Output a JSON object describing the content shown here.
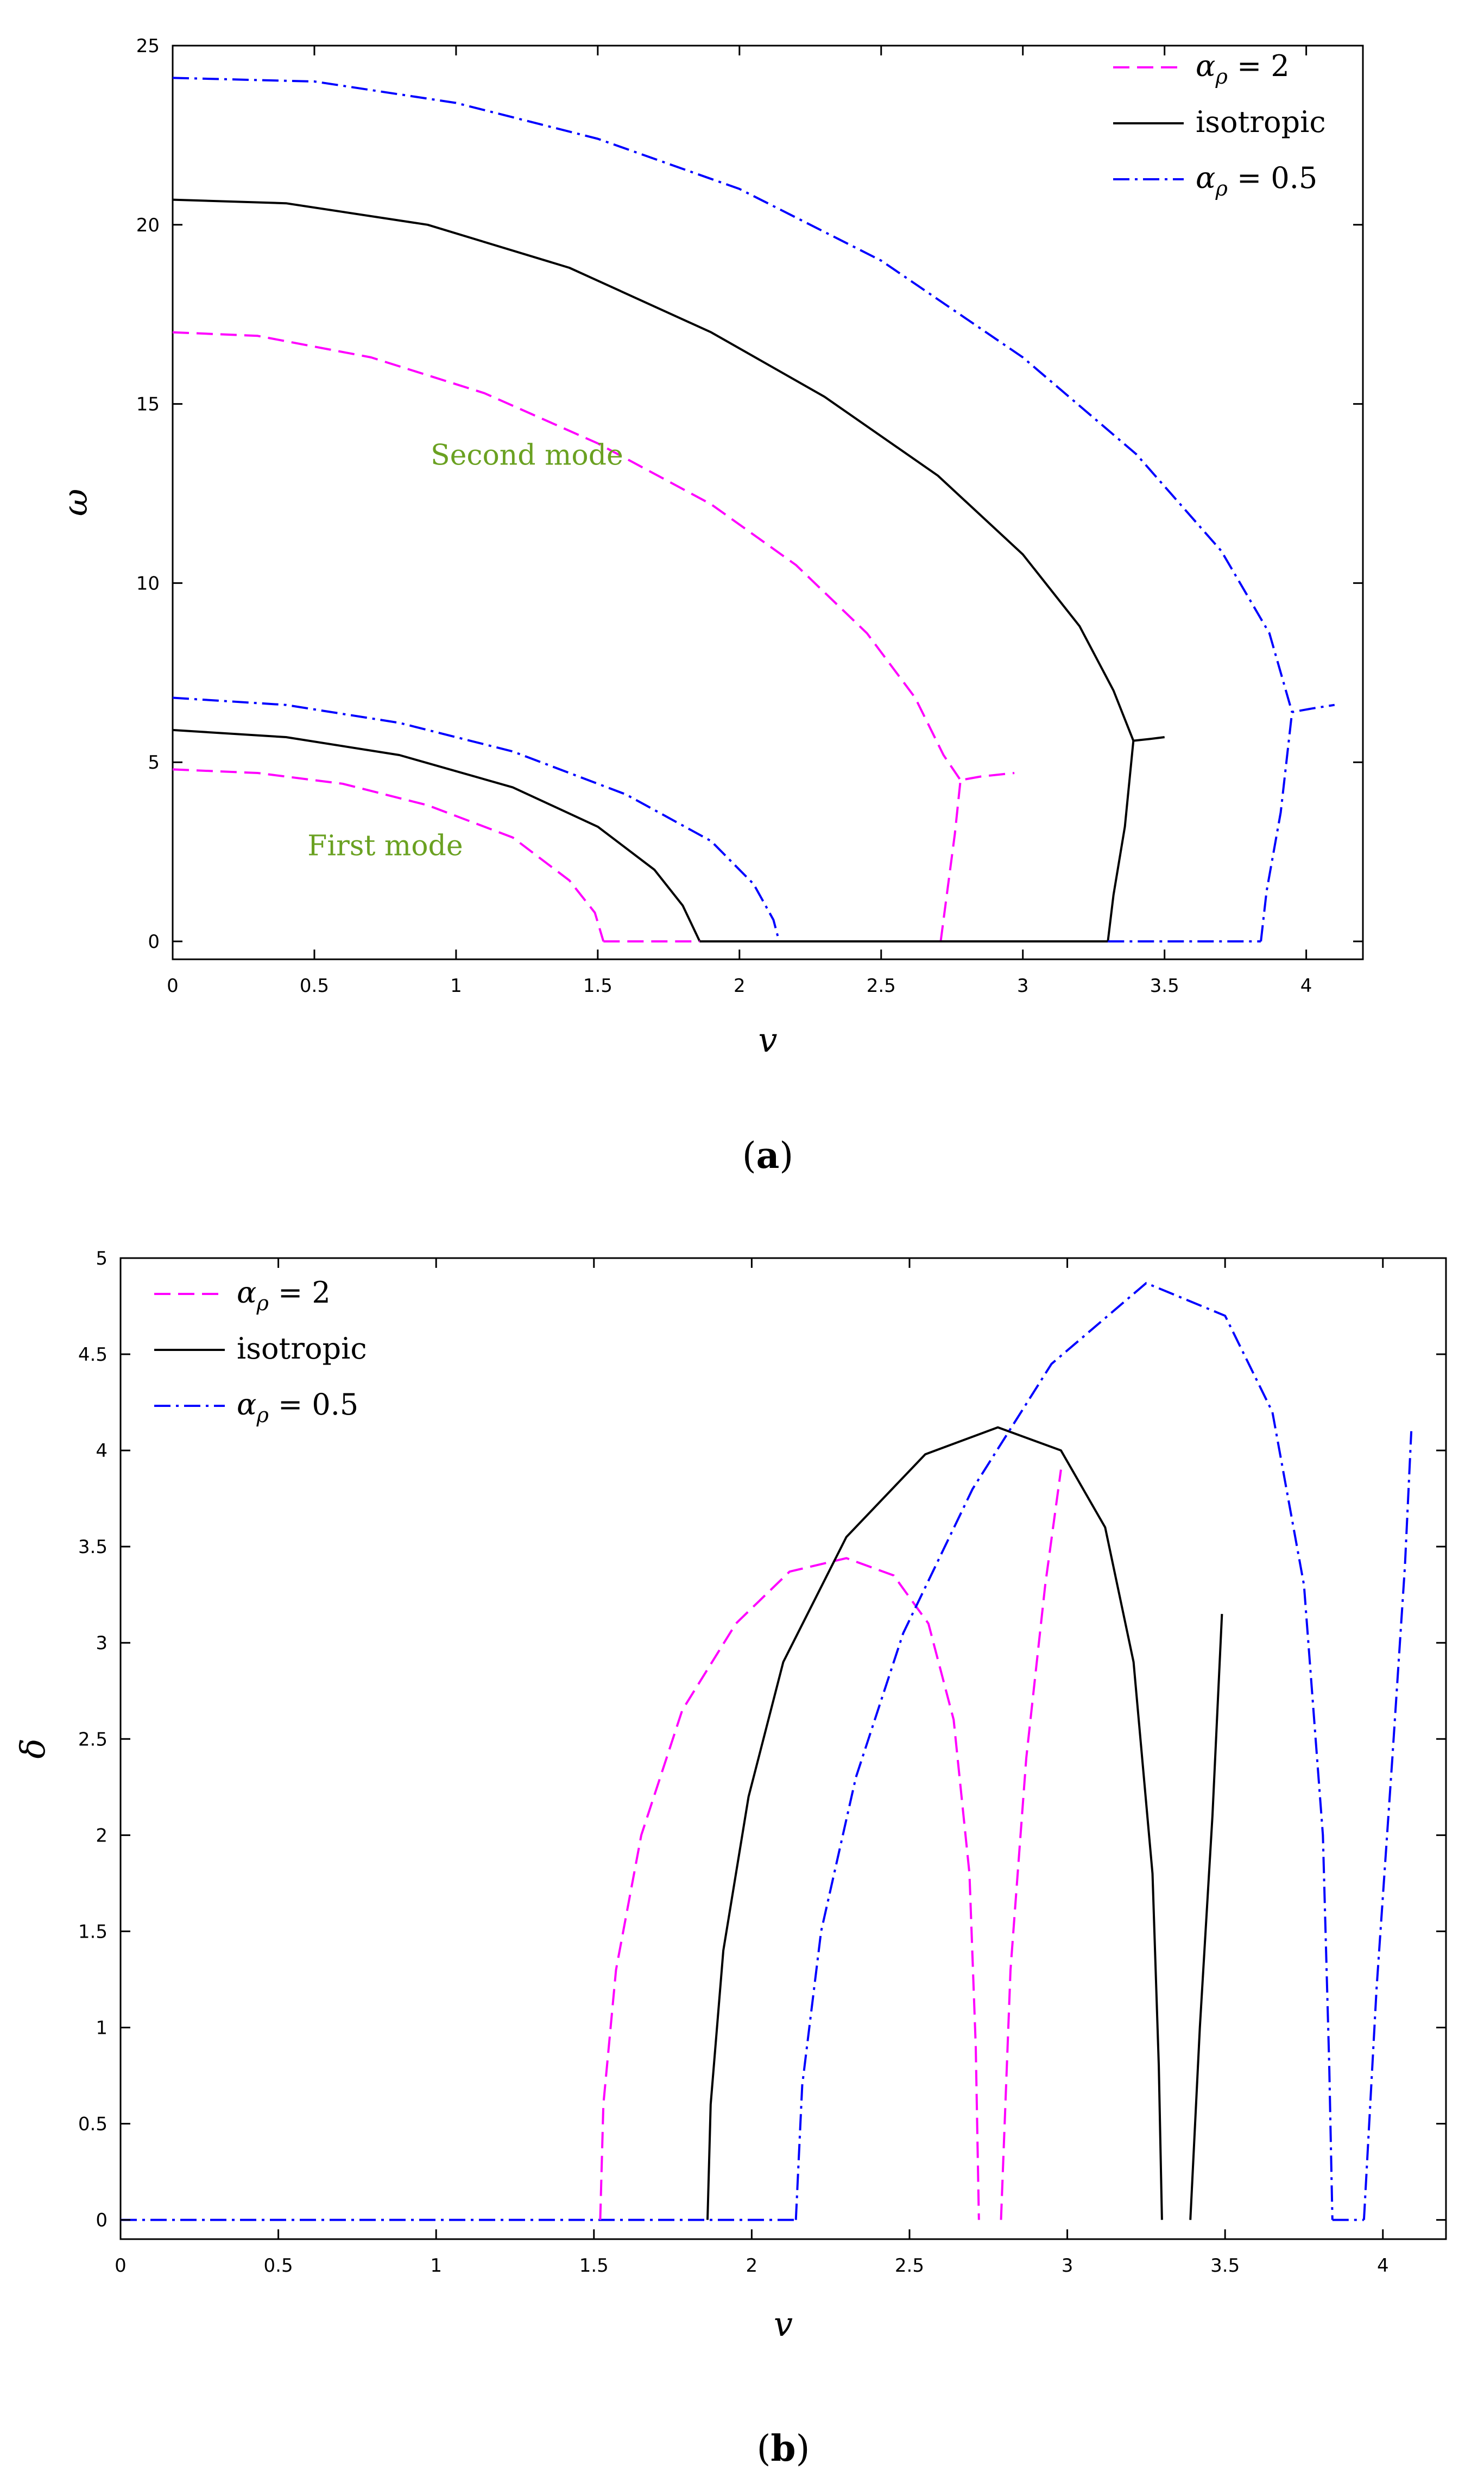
{
  "chart_data": [
    {
      "type": "line",
      "caption": {
        "open": "(",
        "letter": "a",
        "close": ")"
      },
      "xlabel": "v",
      "ylabel": "ω",
      "xlim": [
        0,
        4.2
      ],
      "ylim": [
        -0.5,
        25
      ],
      "xticks": [
        "0",
        "0.5",
        "1",
        "1.5",
        "2",
        "2.5",
        "3",
        "3.5",
        "4"
      ],
      "yticks": [
        "0",
        "5",
        "10",
        "15",
        "20",
        "25"
      ],
      "legend_position": "top-right",
      "legend": [
        {
          "label": "α",
          "sub": "ρ",
          "rest": " = 2",
          "color": "#ff00ff",
          "dash": "dashed"
        },
        {
          "label": "isotropic",
          "sub": "",
          "rest": "",
          "color": "#000000",
          "dash": "solid"
        },
        {
          "label": "α",
          "sub": "ρ",
          "rest": " = 0.5",
          "color": "#0000ff",
          "dash": "dashdot"
        }
      ],
      "annotations": [
        {
          "text": "Second mode",
          "x": 1.25,
          "y": 13.3
        },
        {
          "text": "First mode",
          "x": 0.75,
          "y": 2.4
        }
      ],
      "series": [
        {
          "series_index": 0,
          "color": "#ff00ff",
          "dash": "dashed",
          "points": [
            [
              0,
              4.8
            ],
            [
              0.3,
              4.7
            ],
            [
              0.6,
              4.4
            ],
            [
              0.9,
              3.8
            ],
            [
              1.2,
              2.9
            ],
            [
              1.4,
              1.7
            ],
            [
              1.49,
              0.8
            ],
            [
              1.52,
              0
            ]
          ]
        },
        {
          "series_index": 1,
          "color": "#000000",
          "dash": "solid",
          "points": [
            [
              0,
              5.9
            ],
            [
              0.4,
              5.7
            ],
            [
              0.8,
              5.2
            ],
            [
              1.2,
              4.3
            ],
            [
              1.5,
              3.2
            ],
            [
              1.7,
              2.0
            ],
            [
              1.8,
              1.0
            ],
            [
              1.86,
              0
            ]
          ]
        },
        {
          "series_index": 2,
          "color": "#0000ff",
          "dash": "dashdot",
          "points": [
            [
              0,
              6.8
            ],
            [
              0.4,
              6.6
            ],
            [
              0.8,
              6.1
            ],
            [
              1.2,
              5.3
            ],
            [
              1.6,
              4.1
            ],
            [
              1.9,
              2.8
            ],
            [
              2.05,
              1.6
            ],
            [
              2.12,
              0.6
            ],
            [
              2.14,
              0
            ]
          ]
        },
        {
          "series_index": 0,
          "color": "#ff00ff",
          "dash": "dashed",
          "points": [
            [
              0,
              17.0
            ],
            [
              0.3,
              16.9
            ],
            [
              0.7,
              16.3
            ],
            [
              1.1,
              15.3
            ],
            [
              1.5,
              13.9
            ],
            [
              1.9,
              12.2
            ],
            [
              2.2,
              10.5
            ],
            [
              2.45,
              8.6
            ],
            [
              2.62,
              6.8
            ],
            [
              2.72,
              5.2
            ],
            [
              2.78,
              4.5
            ]
          ]
        },
        {
          "series_index": 0,
          "color": "#ff00ff",
          "dash": "dashed",
          "points": [
            [
              1.52,
              0
            ],
            [
              1.86,
              0
            ]
          ]
        },
        {
          "series_index": 0,
          "color": "#ff00ff",
          "dash": "dashed",
          "points": [
            [
              2.71,
              0
            ],
            [
              2.73,
              1.2
            ],
            [
              2.76,
              3.0
            ],
            [
              2.78,
              4.5
            ],
            [
              2.85,
              4.6
            ],
            [
              2.97,
              4.7
            ]
          ]
        },
        {
          "series_index": 1,
          "color": "#000000",
          "dash": "solid",
          "points": [
            [
              0,
              20.7
            ],
            [
              0.4,
              20.6
            ],
            [
              0.9,
              20.0
            ],
            [
              1.4,
              18.8
            ],
            [
              1.9,
              17.0
            ],
            [
              2.3,
              15.2
            ],
            [
              2.7,
              13.0
            ],
            [
              3.0,
              10.8
            ],
            [
              3.2,
              8.8
            ],
            [
              3.32,
              7.0
            ],
            [
              3.39,
              5.6
            ]
          ]
        },
        {
          "series_index": 1,
          "color": "#000000",
          "dash": "solid",
          "points": [
            [
              1.86,
              0
            ],
            [
              3.3,
              0
            ]
          ]
        },
        {
          "series_index": 1,
          "color": "#000000",
          "dash": "solid",
          "points": [
            [
              3.3,
              0
            ],
            [
              3.32,
              1.3
            ],
            [
              3.36,
              3.2
            ],
            [
              3.39,
              5.6
            ],
            [
              3.45,
              5.65
            ],
            [
              3.5,
              5.7
            ]
          ]
        },
        {
          "series_index": 2,
          "color": "#0000ff",
          "dash": "dashdot",
          "points": [
            [
              0,
              24.1
            ],
            [
              0.5,
              24.0
            ],
            [
              1.0,
              23.4
            ],
            [
              1.5,
              22.4
            ],
            [
              2.0,
              21.0
            ],
            [
              2.5,
              19.0
            ],
            [
              3.0,
              16.3
            ],
            [
              3.4,
              13.6
            ],
            [
              3.7,
              10.9
            ],
            [
              3.87,
              8.6
            ],
            [
              3.95,
              6.4
            ]
          ]
        },
        {
          "series_index": 2,
          "color": "#0000ff",
          "dash": "dashdot",
          "points": [
            [
              3.3,
              0
            ],
            [
              3.84,
              0
            ]
          ]
        },
        {
          "series_index": 2,
          "color": "#0000ff",
          "dash": "dashdot",
          "points": [
            [
              3.84,
              0
            ],
            [
              3.86,
              1.4
            ],
            [
              3.91,
              3.6
            ],
            [
              3.95,
              6.4
            ],
            [
              4.02,
              6.5
            ],
            [
              4.1,
              6.6
            ]
          ]
        }
      ]
    },
    {
      "type": "line",
      "caption": {
        "open": "(",
        "letter": "b",
        "close": ")"
      },
      "xlabel": "v",
      "ylabel": "δ",
      "xlim": [
        0,
        4.2
      ],
      "ylim": [
        -0.1,
        5
      ],
      "xticks": [
        "0",
        "0.5",
        "1",
        "1.5",
        "2",
        "2.5",
        "3",
        "3.5",
        "4"
      ],
      "yticks": [
        "0",
        "0.5",
        "1",
        "1.5",
        "2",
        "2.5",
        "3",
        "3.5",
        "4",
        "4.5",
        "5"
      ],
      "legend_position": "top-left",
      "legend": [
        {
          "label": "α",
          "sub": "ρ",
          "rest": " = 2",
          "color": "#ff00ff",
          "dash": "dashed"
        },
        {
          "label": "isotropic",
          "sub": "",
          "rest": "",
          "color": "#000000",
          "dash": "solid"
        },
        {
          "label": "α",
          "sub": "ρ",
          "rest": " = 0.5",
          "color": "#0000ff",
          "dash": "dashdot"
        }
      ],
      "annotations": [],
      "series": [
        {
          "series_index": 2,
          "color": "#0000ff",
          "dash": "dashdot",
          "points": [
            [
              0,
              0
            ],
            [
              2.14,
              0
            ]
          ]
        },
        {
          "series_index": 0,
          "color": "#ff00ff",
          "dash": "dashed",
          "points": [
            [
              1.52,
              0
            ],
            [
              1.53,
              0.6
            ],
            [
              1.57,
              1.3
            ],
            [
              1.65,
              2.0
            ],
            [
              1.78,
              2.65
            ],
            [
              1.95,
              3.1
            ],
            [
              2.12,
              3.37
            ],
            [
              2.3,
              3.44
            ],
            [
              2.45,
              3.35
            ],
            [
              2.56,
              3.1
            ],
            [
              2.64,
              2.6
            ],
            [
              2.69,
              1.8
            ],
            [
              2.71,
              0.9
            ],
            [
              2.72,
              0
            ]
          ]
        },
        {
          "series_index": 0,
          "color": "#ff00ff",
          "dash": "dashed",
          "points": [
            [
              2.79,
              0
            ],
            [
              2.82,
              1.3
            ],
            [
              2.87,
              2.4
            ],
            [
              2.93,
              3.3
            ],
            [
              2.98,
              3.9
            ]
          ]
        },
        {
          "series_index": 1,
          "color": "#000000",
          "dash": "solid",
          "points": [
            [
              1.86,
              0
            ],
            [
              1.87,
              0.6
            ],
            [
              1.91,
              1.4
            ],
            [
              1.99,
              2.2
            ],
            [
              2.1,
              2.9
            ],
            [
              2.3,
              3.55
            ],
            [
              2.55,
              3.98
            ],
            [
              2.78,
              4.12
            ],
            [
              2.98,
              4.0
            ],
            [
              3.12,
              3.6
            ],
            [
              3.21,
              2.9
            ],
            [
              3.27,
              1.8
            ],
            [
              3.29,
              0.8
            ],
            [
              3.3,
              0
            ]
          ]
        },
        {
          "series_index": 1,
          "color": "#000000",
          "dash": "solid",
          "points": [
            [
              3.39,
              0
            ],
            [
              3.42,
              1.0
            ],
            [
              3.46,
              2.1
            ],
            [
              3.49,
              3.15
            ]
          ]
        },
        {
          "series_index": 2,
          "color": "#0000ff",
          "dash": "dashdot",
          "points": [
            [
              2.14,
              0
            ],
            [
              2.16,
              0.7
            ],
            [
              2.22,
              1.5
            ],
            [
              2.33,
              2.3
            ],
            [
              2.48,
              3.05
            ],
            [
              2.7,
              3.8
            ],
            [
              2.95,
              4.45
            ],
            [
              3.25,
              4.87
            ],
            [
              3.5,
              4.7
            ],
            [
              3.65,
              4.2
            ],
            [
              3.75,
              3.3
            ],
            [
              3.81,
              2.0
            ],
            [
              3.83,
              0.8
            ],
            [
              3.84,
              0
            ]
          ]
        },
        {
          "series_index": 2,
          "color": "#0000ff",
          "dash": "dashdot",
          "points": [
            [
              3.84,
              0
            ],
            [
              3.94,
              0
            ]
          ]
        },
        {
          "series_index": 2,
          "color": "#0000ff",
          "dash": "dashdot",
          "points": [
            [
              3.94,
              0
            ],
            [
              3.98,
              1.2
            ],
            [
              4.03,
              2.4
            ],
            [
              4.07,
              3.4
            ],
            [
              4.09,
              4.1
            ]
          ]
        }
      ]
    }
  ]
}
